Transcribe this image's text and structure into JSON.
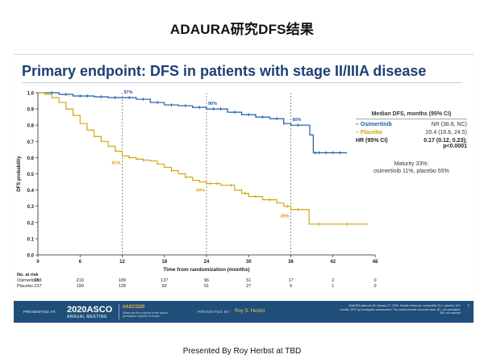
{
  "page": {
    "title": "ADAURA研究DFS结果",
    "caption": "Presented By Roy Herbst at TBD"
  },
  "slide": {
    "heading": "Primary endpoint: DFS in patients with stage II/IIIA disease",
    "legend": {
      "title": "Median DFS, months (95% CI)",
      "osimertinib_label": "– Osimertinib",
      "osimertinib_value": "NR (38.8, NC)",
      "placebo_label": "– Placebo",
      "placebo_value": "20.4 (16.6, 24.5)",
      "hr_label": "HR (95% CI)",
      "hr_value": "0.17 (0.12, 0.23);",
      "p_value": "p<0.0001",
      "maturity_line1": "Maturity 33%:",
      "maturity_line2": "osimertinib 11%, placebo 55%"
    },
    "footer": {
      "presented_at": "PRESENTED AT:",
      "asco_main": "2020ASCO",
      "asco_sub": "ANNUAL MEETING",
      "hashtag": "#ASCO20",
      "hashtag_note": "Slides are the property of the author, permission required for reuse.",
      "presented_by": "PRESENTED BY:",
      "presenter": "Roy S. Herbst",
      "cutoff_note": "ADAURA data cut-off: January 17, 2020. Median follow-up: osimertinib 22.1, placebo 15.0 months. DFS by investigator assessment; Tick marks indicate censored data. NC, not calculable; NR, not reached",
      "slide_number": "7"
    }
  },
  "colors": {
    "osimertinib": "#1a5ba8",
    "placebo": "#d4a50a",
    "heading": "#1f3f73",
    "footer_bg": "#1f4e79"
  },
  "chart_data": {
    "type": "line",
    "subtype": "kaplan-meier step",
    "xlabel": "Time from randomization (months)",
    "ylabel": "DFS probability",
    "xlim": [
      0,
      48
    ],
    "ylim": [
      0,
      1.0
    ],
    "x_ticks": [
      0,
      6,
      12,
      18,
      24,
      30,
      36,
      42,
      48
    ],
    "y_ticks": [
      "0.0",
      "0.1",
      "0.2",
      "0.3",
      "0.4",
      "0.5",
      "0.6",
      "0.7",
      "0.8",
      "0.9",
      "1.0"
    ],
    "reference_times": [
      12,
      24,
      36
    ],
    "series": [
      {
        "name": "Osimertinib",
        "color": "#1a5ba8",
        "points": [
          [
            0,
            1.0
          ],
          [
            3,
            0.99
          ],
          [
            5,
            0.98
          ],
          [
            8,
            0.975
          ],
          [
            10,
            0.97
          ],
          [
            12,
            0.97
          ],
          [
            14,
            0.96
          ],
          [
            16,
            0.94
          ],
          [
            18,
            0.925
          ],
          [
            20,
            0.92
          ],
          [
            22,
            0.91
          ],
          [
            24,
            0.9
          ],
          [
            27,
            0.88
          ],
          [
            29,
            0.865
          ],
          [
            31,
            0.85
          ],
          [
            33,
            0.84
          ],
          [
            35,
            0.81
          ],
          [
            36,
            0.8
          ],
          [
            38.5,
            0.8
          ],
          [
            38.7,
            0.74
          ],
          [
            39.2,
            0.63
          ],
          [
            44,
            0.63
          ]
        ],
        "censor_times": [
          2,
          4,
          6,
          7,
          9,
          11,
          13,
          15,
          17,
          19,
          21,
          23,
          25,
          26,
          28,
          30,
          32,
          34,
          35,
          37,
          39.5,
          40,
          41,
          42,
          43
        ]
      },
      {
        "name": "Placebo",
        "color": "#d4a50a",
        "points": [
          [
            0,
            1.0
          ],
          [
            1,
            0.99
          ],
          [
            2,
            0.97
          ],
          [
            3,
            0.94
          ],
          [
            4,
            0.9
          ],
          [
            5,
            0.86
          ],
          [
            6,
            0.81
          ],
          [
            7,
            0.77
          ],
          [
            8,
            0.73
          ],
          [
            9,
            0.7
          ],
          [
            10,
            0.67
          ],
          [
            11,
            0.64
          ],
          [
            12,
            0.61
          ],
          [
            13,
            0.6
          ],
          [
            14,
            0.59
          ],
          [
            15,
            0.585
          ],
          [
            16,
            0.58
          ],
          [
            17,
            0.56
          ],
          [
            18,
            0.54
          ],
          [
            19,
            0.52
          ],
          [
            20,
            0.5
          ],
          [
            21,
            0.48
          ],
          [
            22,
            0.46
          ],
          [
            23,
            0.45
          ],
          [
            24,
            0.44
          ],
          [
            26,
            0.43
          ],
          [
            27,
            0.43
          ],
          [
            28,
            0.4
          ],
          [
            29,
            0.38
          ],
          [
            30,
            0.36
          ],
          [
            32,
            0.34
          ],
          [
            34,
            0.32
          ],
          [
            35,
            0.3
          ],
          [
            36,
            0.28
          ],
          [
            38,
            0.28
          ],
          [
            38.6,
            0.19
          ],
          [
            47,
            0.19
          ]
        ],
        "censor_times": [
          13,
          15,
          19,
          21,
          24.5,
          25.5,
          27.5,
          29.5,
          31,
          33,
          35.5,
          37,
          40,
          44
        ]
      }
    ],
    "annotations": [
      {
        "text": "97%",
        "x": 12,
        "y": 0.97,
        "series": "Osimertinib"
      },
      {
        "text": "90%",
        "x": 24,
        "y": 0.9,
        "series": "Osimertinib"
      },
      {
        "text": "80%",
        "x": 36,
        "y": 0.8,
        "series": "Osimertinib"
      },
      {
        "text": "61%",
        "x": 12,
        "y": 0.61,
        "series": "Placebo"
      },
      {
        "text": "44%",
        "x": 24,
        "y": 0.44,
        "series": "Placebo"
      },
      {
        "text": "28%",
        "x": 36,
        "y": 0.28,
        "series": "Placebo"
      }
    ],
    "risk_table": {
      "title": "No. at risk",
      "times": [
        0,
        6,
        12,
        18,
        24,
        30,
        36,
        42,
        48
      ],
      "rows": [
        {
          "name": "Osimertinib",
          "values": [
            233,
            219,
            189,
            137,
            96,
            51,
            17,
            2,
            0
          ]
        },
        {
          "name": "Placebo",
          "values": [
            237,
            190,
            128,
            82,
            51,
            27,
            9,
            1,
            0
          ]
        }
      ]
    }
  }
}
